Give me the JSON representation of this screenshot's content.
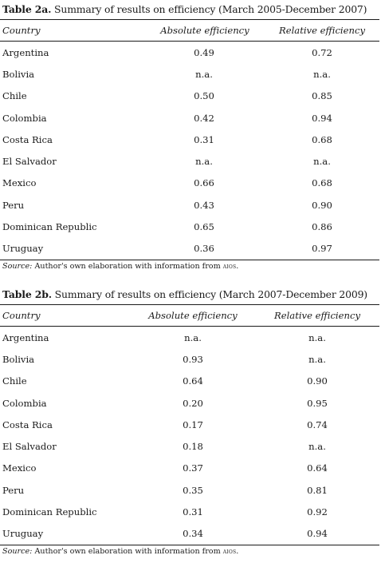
{
  "table_a": {
    "caption_label": "Table 2a.",
    "caption_text": " Summary of results on efficiency (March 2005-December 2007)",
    "headers": {
      "country": "Country",
      "absolute": "Absolute efficiency",
      "relative": "Relative efficiency"
    },
    "rows": [
      {
        "country": "Argentina",
        "absolute": "0.49",
        "relative": "0.72"
      },
      {
        "country": "Bolivia",
        "absolute": "n.a.",
        "relative": "n.a."
      },
      {
        "country": "Chile",
        "absolute": "0.50",
        "relative": "0.85"
      },
      {
        "country": "Colombia",
        "absolute": "0.42",
        "relative": "0.94"
      },
      {
        "country": "Costa Rica",
        "absolute": "0.31",
        "relative": "0.68"
      },
      {
        "country": "El Salvador",
        "absolute": "n.a.",
        "relative": "n.a."
      },
      {
        "country": "Mexico",
        "absolute": "0.66",
        "relative": "0.68"
      },
      {
        "country": "Peru",
        "absolute": "0.43",
        "relative": "0.90"
      },
      {
        "country": "Dominican Republic",
        "absolute": "0.65",
        "relative": "0.86"
      },
      {
        "country": "Uruguay",
        "absolute": "0.36",
        "relative": "0.97"
      }
    ],
    "source": {
      "label": "Source:",
      "text": " Author's own elaboration with information from ",
      "org": "aios",
      "end": "."
    }
  },
  "table_b": {
    "caption_label": "Table 2b.",
    "caption_text": " Summary of results on efficiency (March 2007-December 2009)",
    "headers": {
      "country": "Country",
      "absolute": "Absolute efficiency",
      "relative": "Relative efficiency"
    },
    "rows": [
      {
        "country": "Argentina",
        "absolute": "n.a.",
        "relative": "n.a."
      },
      {
        "country": "Bolivia",
        "absolute": "0.93",
        "relative": "n.a."
      },
      {
        "country": "Chile",
        "absolute": "0.64",
        "relative": "0.90"
      },
      {
        "country": "Colombia",
        "absolute": "0.20",
        "relative": "0.95"
      },
      {
        "country": "Costa Rica",
        "absolute": "0.17",
        "relative": "0.74"
      },
      {
        "country": "El Salvador",
        "absolute": "0.18",
        "relative": "n.a."
      },
      {
        "country": "Mexico",
        "absolute": "0.37",
        "relative": "0.64"
      },
      {
        "country": "Peru",
        "absolute": "0.35",
        "relative": "0.81"
      },
      {
        "country": "Dominican Republic",
        "absolute": "0.31",
        "relative": "0.92"
      },
      {
        "country": "Uruguay",
        "absolute": "0.34",
        "relative": "0.94"
      }
    ],
    "source": {
      "label": "Source:",
      "text": " Author's own elaboration with information from ",
      "org": "aios",
      "end": "."
    }
  }
}
